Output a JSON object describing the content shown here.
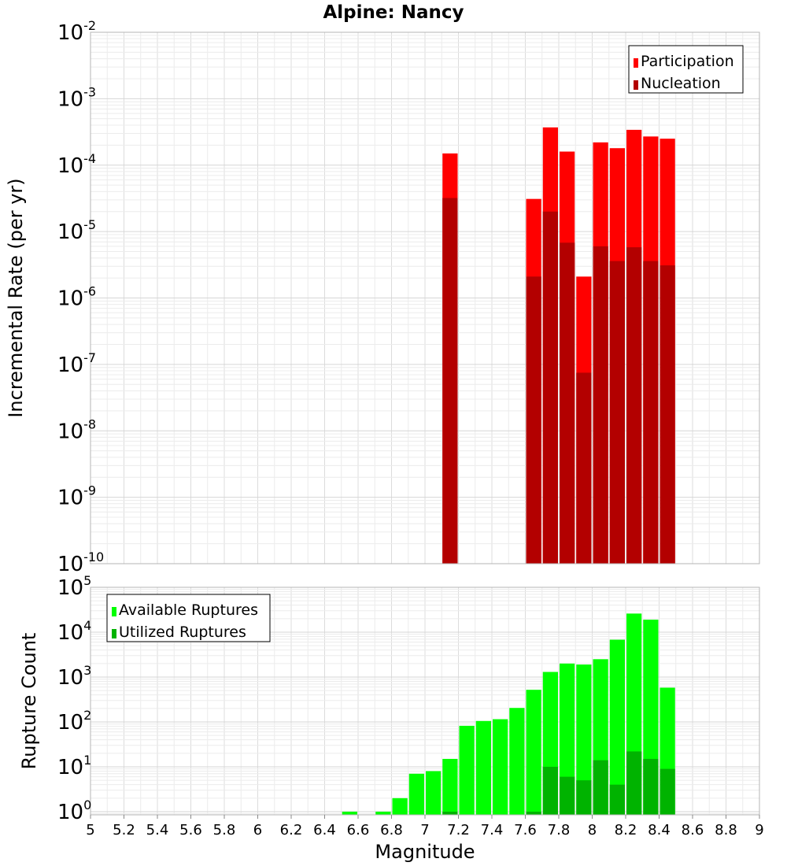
{
  "chart_data": [
    {
      "type": "bar",
      "title": "Alpine: Nancy",
      "xlabel": "Magnitude",
      "ylabel": "Incremental Rate (per yr)",
      "yscale": "log",
      "ylim": [
        1e-10,
        0.01
      ],
      "xlim": [
        5,
        9
      ],
      "bin_width": 0.1,
      "legend_position": "top-right",
      "ytick_labels": [
        {
          "base": "10",
          "exp": "-10"
        },
        {
          "base": "10",
          "exp": "-9"
        },
        {
          "base": "10",
          "exp": "-8"
        },
        {
          "base": "10",
          "exp": "-7"
        },
        {
          "base": "10",
          "exp": "-6"
        },
        {
          "base": "10",
          "exp": "-5"
        },
        {
          "base": "10",
          "exp": "-4"
        },
        {
          "base": "10",
          "exp": "-3"
        },
        {
          "base": "10",
          "exp": "-2"
        }
      ],
      "series": [
        {
          "name": "Participation",
          "color": "#ff0000",
          "x": [
            7.15,
            7.65,
            7.75,
            7.85,
            7.95,
            8.05,
            8.15,
            8.25,
            8.35,
            8.45
          ],
          "values": [
            0.00015,
            3.1e-05,
            0.00037,
            0.00016,
            2.1e-06,
            0.00022,
            0.00018,
            0.00034,
            0.00027,
            0.00025
          ]
        },
        {
          "name": "Nucleation",
          "color": "#b30000",
          "x": [
            7.15,
            7.65,
            7.75,
            7.85,
            7.95,
            8.05,
            8.15,
            8.25,
            8.35,
            8.45
          ],
          "values": [
            3.2e-05,
            2.1e-06,
            2e-05,
            6.8e-06,
            7.5e-08,
            6e-06,
            3.6e-06,
            5.8e-06,
            3.6e-06,
            3.1e-06
          ]
        }
      ]
    },
    {
      "type": "bar",
      "xlabel": "Magnitude",
      "ylabel": "Rupture Count",
      "yscale": "log",
      "ylim": [
        0.85,
        100000.0
      ],
      "xlim": [
        5,
        9
      ],
      "bin_width": 0.1,
      "legend_position": "top-left",
      "xtick_labels": [
        "5",
        "5.2",
        "5.4",
        "5.6",
        "5.8",
        "6",
        "6.2",
        "6.4",
        "6.6",
        "6.8",
        "7",
        "7.2",
        "7.4",
        "7.6",
        "7.8",
        "8",
        "8.2",
        "8.4",
        "8.6",
        "8.8",
        "9"
      ],
      "ytick_labels": [
        {
          "base": "10",
          "exp": "0"
        },
        {
          "base": "10",
          "exp": "1"
        },
        {
          "base": "10",
          "exp": "2"
        },
        {
          "base": "10",
          "exp": "3"
        },
        {
          "base": "10",
          "exp": "4"
        },
        {
          "base": "10",
          "exp": "5"
        }
      ],
      "series": [
        {
          "name": "Available Ruptures",
          "color": "#00ff00",
          "x": [
            6.55,
            6.75,
            6.85,
            6.95,
            7.05,
            7.15,
            7.25,
            7.35,
            7.45,
            7.55,
            7.65,
            7.75,
            7.85,
            7.95,
            8.05,
            8.15,
            8.25,
            8.35,
            8.45
          ],
          "values": [
            1,
            1,
            2,
            7,
            8,
            15,
            82,
            105,
            115,
            205,
            520,
            1300,
            2000,
            1900,
            2500,
            6800,
            26000,
            19000,
            580
          ]
        },
        {
          "name": "Utilized Ruptures",
          "color": "#00b300",
          "x": [
            7.15,
            7.65,
            7.75,
            7.85,
            7.95,
            8.05,
            8.15,
            8.25,
            8.35,
            8.45
          ],
          "values": [
            1,
            1,
            10,
            6,
            5,
            14,
            4,
            22,
            15,
            9
          ]
        }
      ]
    }
  ]
}
